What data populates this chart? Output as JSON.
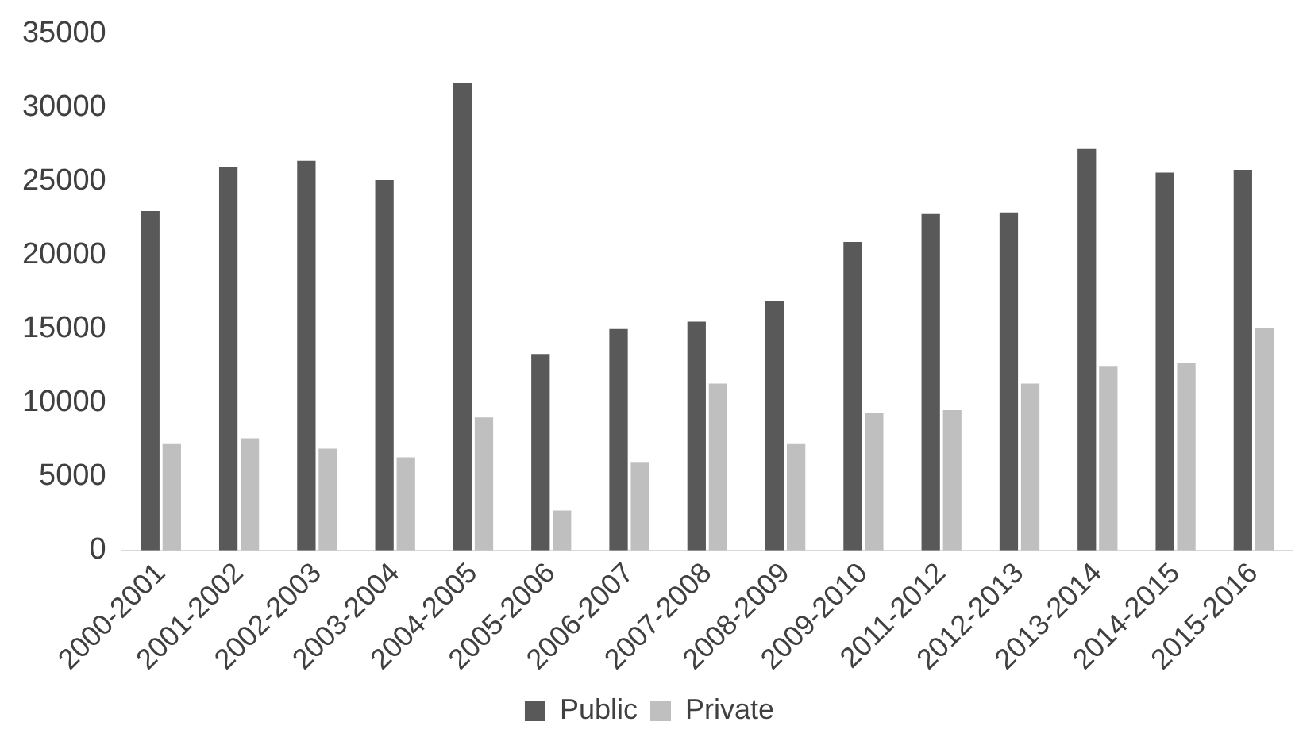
{
  "chart_data": {
    "type": "bar",
    "categories": [
      "2000-2001",
      "2001-2002",
      "2002-2003",
      "2003-2004",
      "2004-2005",
      "2005-2006",
      "2006-2007",
      "2007-2008",
      "2008-2009",
      "2009-2010",
      "2011-2012",
      "2012-2013",
      "2013-2014",
      "2014-2015",
      "2015-2016"
    ],
    "series": [
      {
        "name": "Public",
        "color": "#595959",
        "values": [
          23000,
          26000,
          26400,
          25100,
          31700,
          13300,
          15000,
          15500,
          16900,
          20900,
          22800,
          22900,
          27200,
          25600,
          25800
        ]
      },
      {
        "name": "Private",
        "color": "#bfbfbf",
        "values": [
          7200,
          7600,
          6900,
          6300,
          9000,
          2700,
          6000,
          11300,
          7200,
          9300,
          9500,
          11300,
          12500,
          12700,
          15100
        ]
      }
    ],
    "ylim": [
      0,
      35000
    ],
    "yticks": [
      0,
      5000,
      10000,
      15000,
      20000,
      25000,
      30000,
      35000
    ],
    "grid": false,
    "legend": "bottom"
  }
}
